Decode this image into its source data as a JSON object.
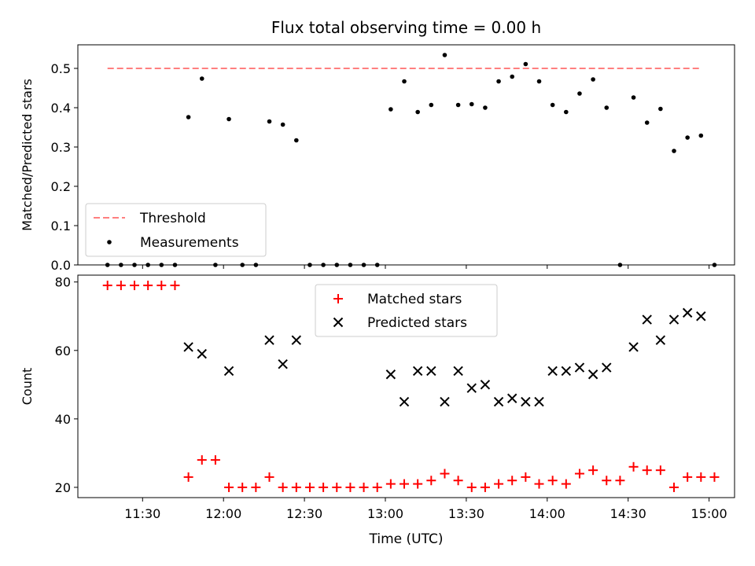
{
  "chart_data": [
    {
      "type": "scatter",
      "title": "Flux total observing time = 0.00 h",
      "ylabel": "Matched/Predicted stars",
      "xlabel": "",
      "ylim": [
        0,
        0.56
      ],
      "yticks": [
        "0.0",
        "0.1",
        "0.2",
        "0.3",
        "0.4",
        "0.5"
      ],
      "legend_position": "lower-left",
      "threshold": {
        "name": "Threshold",
        "value": 0.5,
        "color": "#ff7f7f",
        "x_start": "11:17",
        "x_end": "14:57"
      },
      "series": [
        {
          "name": "Measurements",
          "color": "#000000",
          "marker": "dot",
          "points": [
            [
              "11:17",
              0
            ],
            [
              "11:22",
              0
            ],
            [
              "11:27",
              0
            ],
            [
              "11:32",
              0
            ],
            [
              "11:37",
              0
            ],
            [
              "11:42",
              0
            ],
            [
              "11:47",
              0.376
            ],
            [
              "11:52",
              0.474
            ],
            [
              "11:57",
              0
            ],
            [
              "12:02",
              0.371
            ],
            [
              "12:07",
              0
            ],
            [
              "12:12",
              0
            ],
            [
              "12:17",
              0.365
            ],
            [
              "12:22",
              0.357
            ],
            [
              "12:27",
              0.317
            ],
            [
              "12:32",
              0
            ],
            [
              "12:37",
              0
            ],
            [
              "12:42",
              0
            ],
            [
              "12:47",
              0
            ],
            [
              "12:52",
              0
            ],
            [
              "12:57",
              0
            ],
            [
              "13:02",
              0.396
            ],
            [
              "13:07",
              0.467
            ],
            [
              "13:12",
              0.389
            ],
            [
              "13:17",
              0.407
            ],
            [
              "13:22",
              0.534
            ],
            [
              "13:27",
              0.407
            ],
            [
              "13:32",
              0.409
            ],
            [
              "13:37",
              0.4
            ],
            [
              "13:42",
              0.467
            ],
            [
              "13:47",
              0.479
            ],
            [
              "13:52",
              0.511
            ],
            [
              "13:57",
              0.467
            ],
            [
              "14:02",
              0.407
            ],
            [
              "14:07",
              0.389
            ],
            [
              "14:12",
              0.436
            ],
            [
              "14:17",
              0.472
            ],
            [
              "14:22",
              0.4
            ],
            [
              "14:27",
              0
            ],
            [
              "14:32",
              0.426
            ],
            [
              "14:37",
              0.362
            ],
            [
              "14:42",
              0.397
            ],
            [
              "14:47",
              0.29
            ],
            [
              "14:52",
              0.324
            ],
            [
              "14:57",
              0.329
            ],
            [
              "15:02",
              0
            ]
          ]
        }
      ]
    },
    {
      "type": "scatter",
      "title": "",
      "ylabel": "Count",
      "xlabel": "Time (UTC)",
      "ylim": [
        17,
        82
      ],
      "yticks": [
        "20",
        "40",
        "60",
        "80"
      ],
      "xticks": [
        "11:30",
        "12:00",
        "12:30",
        "13:00",
        "13:30",
        "14:00",
        "14:30",
        "15:00"
      ],
      "legend_position": "upper-center",
      "series": [
        {
          "name": "Matched stars",
          "color": "#ff0000",
          "marker": "plus",
          "points": [
            [
              "11:17",
              79
            ],
            [
              "11:22",
              79
            ],
            [
              "11:27",
              79
            ],
            [
              "11:32",
              79
            ],
            [
              "11:37",
              79
            ],
            [
              "11:42",
              79
            ],
            [
              "11:47",
              23
            ],
            [
              "11:52",
              28
            ],
            [
              "11:57",
              28
            ],
            [
              "12:02",
              20
            ],
            [
              "12:07",
              20
            ],
            [
              "12:12",
              20
            ],
            [
              "12:17",
              23
            ],
            [
              "12:22",
              20
            ],
            [
              "12:27",
              20
            ],
            [
              "12:32",
              20
            ],
            [
              "12:37",
              20
            ],
            [
              "12:42",
              20
            ],
            [
              "12:47",
              20
            ],
            [
              "12:52",
              20
            ],
            [
              "12:57",
              20
            ],
            [
              "13:02",
              21
            ],
            [
              "13:07",
              21
            ],
            [
              "13:12",
              21
            ],
            [
              "13:17",
              22
            ],
            [
              "13:22",
              24
            ],
            [
              "13:27",
              22
            ],
            [
              "13:32",
              20
            ],
            [
              "13:37",
              20
            ],
            [
              "13:42",
              21
            ],
            [
              "13:47",
              22
            ],
            [
              "13:52",
              23
            ],
            [
              "13:57",
              21
            ],
            [
              "14:02",
              22
            ],
            [
              "14:07",
              21
            ],
            [
              "14:12",
              24
            ],
            [
              "14:17",
              25
            ],
            [
              "14:22",
              22
            ],
            [
              "14:27",
              22
            ],
            [
              "14:32",
              26
            ],
            [
              "14:37",
              25
            ],
            [
              "14:42",
              25
            ],
            [
              "14:47",
              20
            ],
            [
              "14:52",
              23
            ],
            [
              "14:57",
              23
            ],
            [
              "15:02",
              23
            ]
          ]
        },
        {
          "name": "Predicted stars",
          "color": "#000000",
          "marker": "cross",
          "points": [
            [
              "11:47",
              61
            ],
            [
              "11:52",
              59
            ],
            [
              "12:02",
              54
            ],
            [
              "12:17",
              63
            ],
            [
              "12:22",
              56
            ],
            [
              "12:27",
              63
            ],
            [
              "13:02",
              53
            ],
            [
              "13:07",
              45
            ],
            [
              "13:12",
              54
            ],
            [
              "13:17",
              54
            ],
            [
              "13:22",
              45
            ],
            [
              "13:27",
              54
            ],
            [
              "13:32",
              49
            ],
            [
              "13:37",
              50
            ],
            [
              "13:42",
              45
            ],
            [
              "13:47",
              46
            ],
            [
              "13:52",
              45
            ],
            [
              "13:57",
              45
            ],
            [
              "14:02",
              54
            ],
            [
              "14:07",
              54
            ],
            [
              "14:12",
              55
            ],
            [
              "14:17",
              53
            ],
            [
              "14:22",
              55
            ],
            [
              "14:32",
              61
            ],
            [
              "14:37",
              69
            ],
            [
              "14:42",
              63
            ],
            [
              "14:47",
              69
            ],
            [
              "14:52",
              71
            ],
            [
              "14:57",
              70
            ]
          ]
        }
      ]
    }
  ]
}
